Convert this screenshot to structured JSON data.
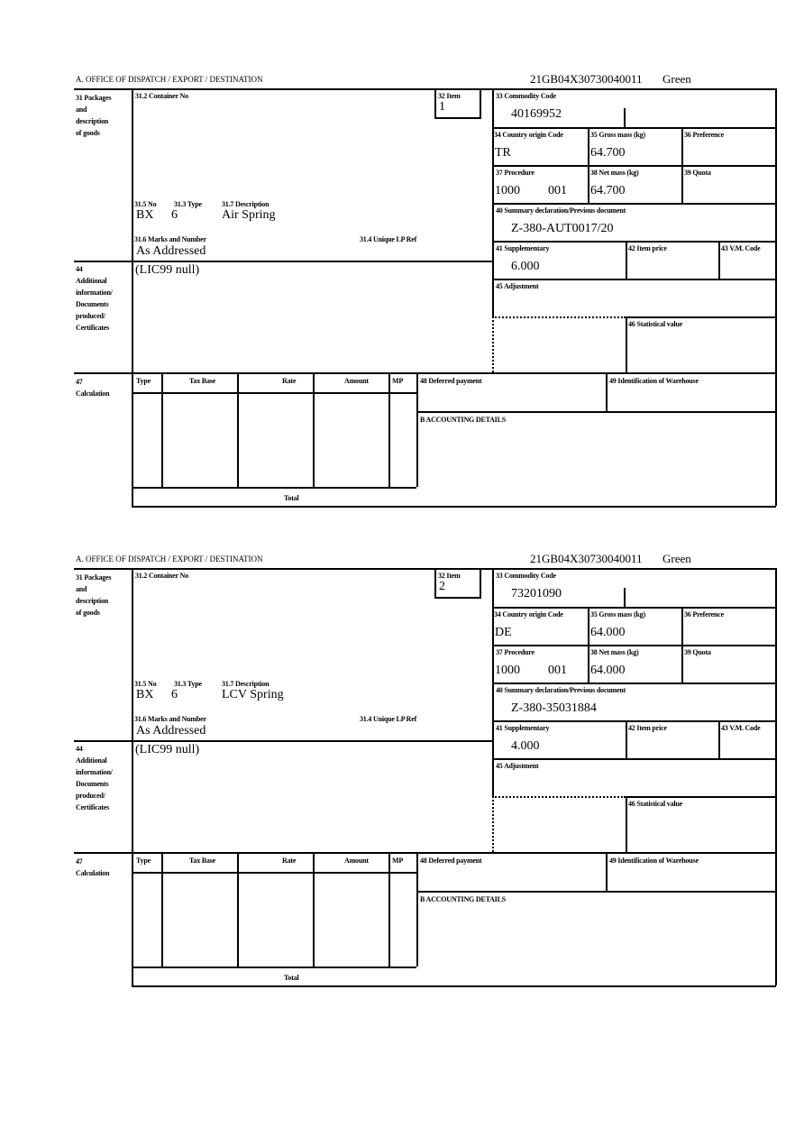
{
  "labels": {
    "office": "A.  OFFICE OF DISPATCH / EXPORT / DESTINATION",
    "box31": [
      "31 Packages",
      "and",
      "description",
      "of goods"
    ],
    "box31_2": "31.2 Container No",
    "box32": "32 Item",
    "box31_5": "31.5 No",
    "box31_3": "31.3 Type",
    "box31_7": "31.7 Description",
    "box31_6": "31.6 Marks and Number",
    "box31_4": "31.4 Unique LP Ref",
    "box33": "33 Commodity Code",
    "box34": "34 Country origin Code",
    "box35": "35 Gross mass (kg)",
    "box36": "36 Preference",
    "box37": "37 Procedure",
    "box38": "38 Net mass (kg)",
    "box39": "39 Quota",
    "box40": "40 Summary declaration/Previous document",
    "box41": "41 Supplementary",
    "box42": "42 Item price",
    "box43": "43 V.M. Code",
    "box44": [
      "44",
      "Additional",
      "information/",
      "Documents",
      "produced/",
      "Certificates"
    ],
    "box45": "45 Adjustment",
    "box46": "46 Statistical value",
    "box47": [
      "47",
      "Calculation"
    ],
    "calc_cols": [
      "Type",
      "Tax Base",
      "Rate",
      "Amount",
      "MP"
    ],
    "total": "Total",
    "box48": "48 Deferred payment",
    "box49": "49 Identification of Warehouse",
    "boxB": "B ACCOUNTING DETAILS"
  },
  "items": [
    {
      "reference": "21GB04X30730040011",
      "route": "Green",
      "item_no": "1",
      "pkg_kind": "BX",
      "pkg_count": "6",
      "description": "Air Spring",
      "marks": "As Addressed",
      "commodity_code": "40169952",
      "country_origin": "TR",
      "gross_mass": "64.700",
      "procedure": "1000",
      "procedure_add": "001",
      "net_mass": "64.700",
      "prev_document": "Z-380-AUT0017/20",
      "supplementary": "6.000",
      "additional_info": "(LIC99 null)"
    },
    {
      "reference": "21GB04X30730040011",
      "route": "Green",
      "item_no": "2",
      "pkg_kind": "BX",
      "pkg_count": "6",
      "description": "LCV Spring",
      "marks": "As Addressed",
      "commodity_code": "73201090",
      "country_origin": "DE",
      "gross_mass": "64.000",
      "procedure": "1000",
      "procedure_add": "001",
      "net_mass": "64.000",
      "prev_document": "Z-380-35031884",
      "supplementary": "4.000",
      "additional_info": "(LIC99 null)"
    }
  ]
}
